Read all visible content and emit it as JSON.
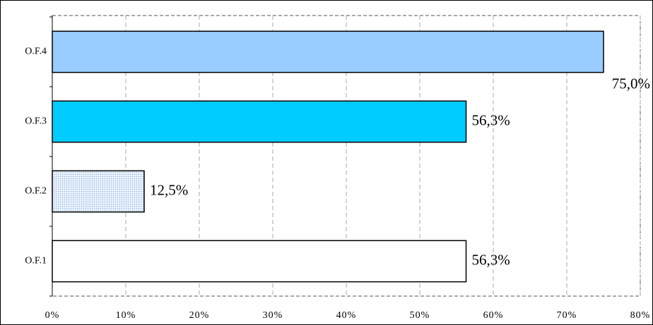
{
  "chart_data": {
    "type": "barh",
    "categories": [
      "O.F.1",
      "O.F.2",
      "O.F.3",
      "O.F.4"
    ],
    "values": [
      56.3,
      12.5,
      56.3,
      75.0
    ],
    "value_labels": [
      "56,3%",
      "12,5%",
      "56,3%",
      "75,0%"
    ],
    "colors": [
      "#ffffff",
      "#dbe8f7",
      "#00ccff",
      "#99ccff"
    ],
    "xlim": [
      0,
      80
    ],
    "xticks": [
      {
        "value": 0,
        "label": "0%"
      },
      {
        "value": 10,
        "label": "10%"
      },
      {
        "value": 20,
        "label": "20%"
      },
      {
        "value": 30,
        "label": "30%"
      },
      {
        "value": 40,
        "label": "40%"
      },
      {
        "value": 50,
        "label": "50%"
      },
      {
        "value": 60,
        "label": "60%"
      },
      {
        "value": 70,
        "label": "70%"
      },
      {
        "value": 80,
        "label": "80%"
      }
    ],
    "grid": true
  }
}
